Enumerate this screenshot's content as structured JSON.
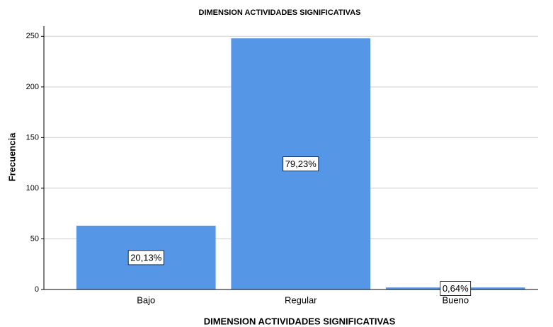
{
  "chart_data": {
    "type": "bar",
    "title": "DIMENSION ACTIVIDADES SIGNIFICATIVAS",
    "x_label": "DIMENSION ACTIVIDADES SIGNIFICATIVAS",
    "y_label": "Frecuencia",
    "categories": [
      "Bajo",
      "Regular",
      "Bueno"
    ],
    "values": [
      63,
      248,
      2
    ],
    "percent_labels": [
      {
        "value": 20.13,
        "label": "20,13%"
      },
      {
        "value": 79.23,
        "label": "79,23%"
      },
      {
        "value": 0.64,
        "label": "0,64%"
      }
    ],
    "color": "#5596e6",
    "ylim": [
      0,
      260
    ],
    "yticks": [
      0,
      50,
      100,
      150,
      200,
      250
    ],
    "grid": true
  }
}
